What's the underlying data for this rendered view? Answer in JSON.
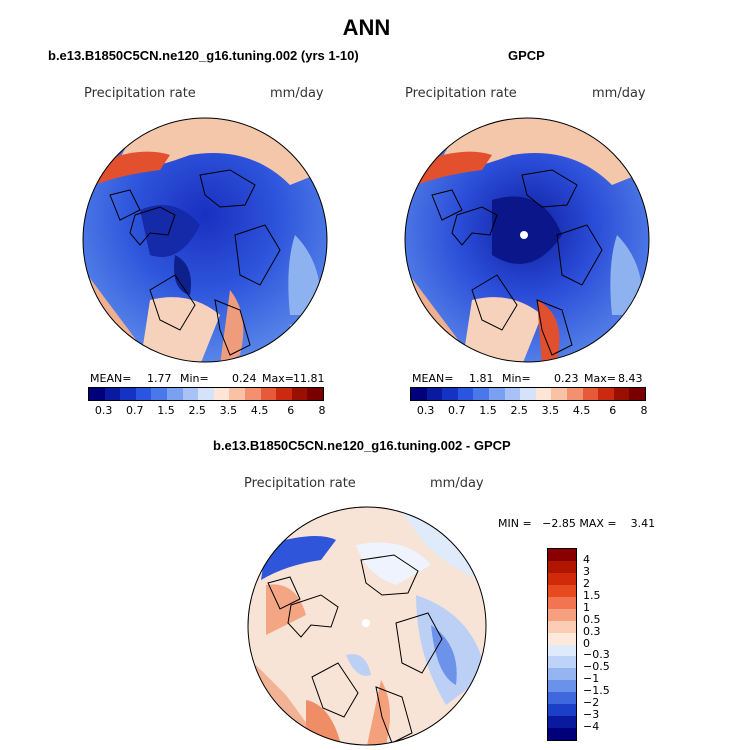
{
  "title": "ANN",
  "panels": [
    {
      "title": "b.e13.B1850C5CN.ne120_g16.tuning.002 (yrs 1-10)",
      "label_left": "Precipitation rate",
      "label_right": "mm/day",
      "mean_label": "MEAN=",
      "mean": "1.77",
      "min_label": "Min=",
      "min": "0.24",
      "max_label": "Max=",
      "max": "11.81"
    },
    {
      "title": "GPCP",
      "label_left": "Precipitation rate",
      "label_right": "mm/day",
      "mean_label": "MEAN=",
      "mean": "1.81",
      "min_label": "Min=",
      "min": "0.23",
      "max_label": "Max=",
      "max": "8.43"
    },
    {
      "title": "b.e13.B1850C5CN.ne120_g16.tuning.002 - GPCP",
      "label_left": "Precipitation rate",
      "label_right": "mm/day",
      "minmax": "MIN =   −2.85 MAX =    3.41"
    }
  ],
  "colorbar_abs": {
    "ticks": [
      "0.3",
      "0.7",
      "1.5",
      "2.5",
      "3.5",
      "4.5",
      "6",
      "8"
    ],
    "colors": [
      "#00007a",
      "#0a1aa0",
      "#1433c4",
      "#2a55e0",
      "#4a78ea",
      "#7aa0f0",
      "#a8c2f5",
      "#d4e2fa",
      "#fde6d6",
      "#f9c2a4",
      "#f29070",
      "#e65a3a",
      "#cc2a10",
      "#9a1000",
      "#7a0000"
    ]
  },
  "colorbar_diff": {
    "labels": [
      "4",
      "3",
      "2",
      "1.5",
      "1",
      "0.5",
      "0.3",
      "0",
      "−0.3",
      "−0.5",
      "−1",
      "−1.5",
      "−2",
      "−3",
      "−4"
    ],
    "colors": [
      "#8a0000",
      "#b01500",
      "#d02a0a",
      "#e84a20",
      "#f27450",
      "#f7a080",
      "#fbcdb5",
      "#fde9dc",
      "#dfeafb",
      "#bdd3f7",
      "#95b5f1",
      "#6a92ea",
      "#3f68de",
      "#1c3fc8",
      "#0a1a9e",
      "#00007a"
    ]
  },
  "colors": {
    "ocean_low": "#1e3fd0",
    "ocean_mid": "#3a66e0",
    "neutral": "#f7e4d6",
    "high": "#d8462a"
  }
}
